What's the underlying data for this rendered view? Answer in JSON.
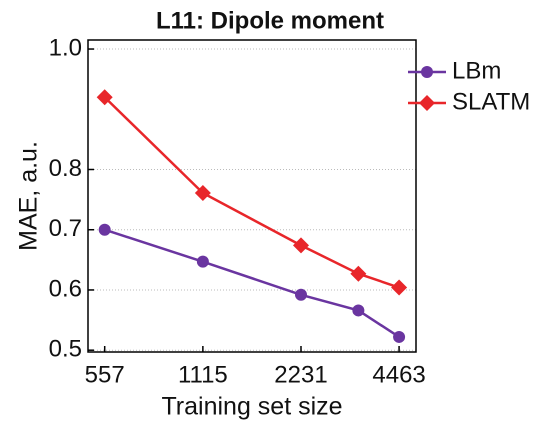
{
  "chart_data": {
    "type": "line",
    "title": "L11: Dipole moment",
    "x_label": "Training set size",
    "y_label": "MAE, a.u.",
    "x": [
      557,
      1115,
      2231,
      3347,
      4463
    ],
    "series": [
      {
        "name": "LBm",
        "color": "#6a35a0",
        "marker": "circle",
        "values": [
          0.7,
          0.647,
          0.592,
          0.566,
          0.522
        ]
      },
      {
        "name": "SLATM",
        "color": "#e8262a",
        "marker": "diamond",
        "values": [
          0.92,
          0.761,
          0.674,
          0.627,
          0.604
        ]
      }
    ],
    "xscale": "log",
    "xlim": [
      495,
      5030
    ],
    "xticks": [
      557,
      1115,
      2231,
      4463
    ],
    "ylim": [
      0.497,
      1.015
    ],
    "yticks": [
      0.5,
      0.6,
      0.7,
      0.8,
      {
        "value": 1.0,
        "label": "1.0"
      }
    ],
    "grid": true,
    "legend": "right"
  }
}
